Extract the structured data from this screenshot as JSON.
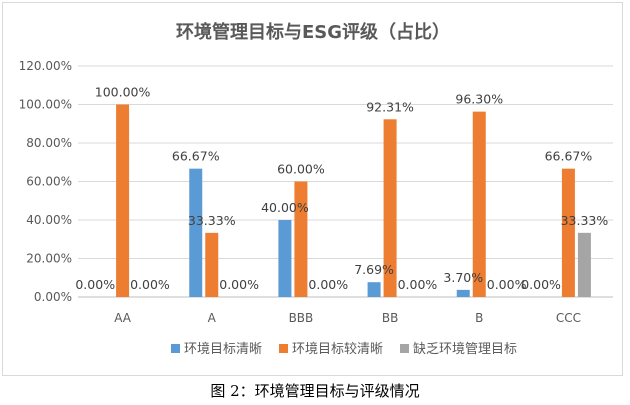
{
  "chart_data": {
    "type": "bar",
    "title": "环境管理目标与ESG评级（占比）",
    "categories": [
      "AA",
      "A",
      "BBB",
      "BB",
      "B",
      "CCC"
    ],
    "series": [
      {
        "name": "环境目标清晰",
        "color": "#5b9bd5",
        "values": [
          0.0,
          66.67,
          40.0,
          7.69,
          3.7,
          0.0
        ],
        "labels": [
          "0.00%",
          "66.67%",
          "40.00%",
          "7.69%",
          "3.70%",
          "0.00%"
        ]
      },
      {
        "name": "环境目标较清晰",
        "color": "#ed7d31",
        "values": [
          100.0,
          33.33,
          60.0,
          92.31,
          96.3,
          66.67
        ],
        "labels": [
          "100.00%",
          "33.33%",
          "60.00%",
          "92.31%",
          "96.30%",
          "66.67%"
        ]
      },
      {
        "name": "缺乏环境管理目标",
        "color": "#a5a5a5",
        "values": [
          0.0,
          0.0,
          0.0,
          0.0,
          0.0,
          33.33
        ],
        "labels": [
          "0.00%",
          "0.00%",
          "0.00%",
          "0.00%",
          "0.00%",
          "33.33%"
        ]
      }
    ],
    "yticks": [
      "0.00%",
      "20.00%",
      "40.00%",
      "60.00%",
      "80.00%",
      "100.00%",
      "120.00%"
    ],
    "ylim": [
      0,
      120
    ],
    "ytick_step": 20,
    "grid": true,
    "legend": "bottom"
  },
  "caption": "图 2：环境管理目标与评级情况"
}
